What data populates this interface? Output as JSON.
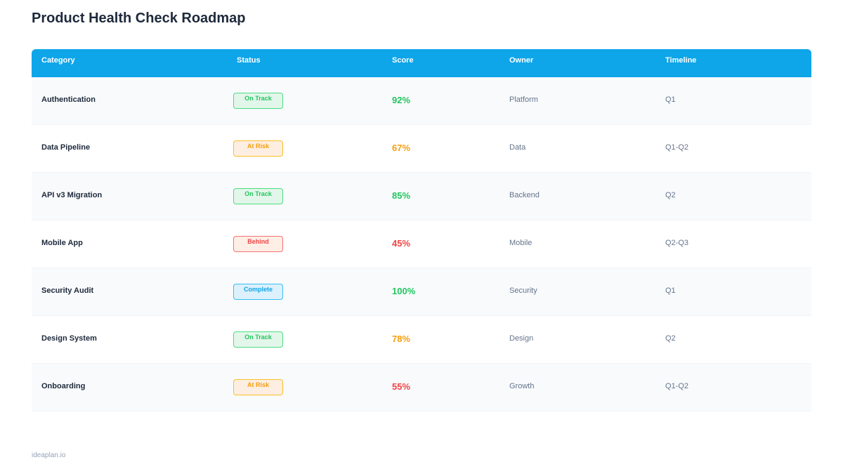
{
  "page": {
    "title": "Product Health Check Roadmap",
    "footer": "ideaplan.io"
  },
  "colors": {
    "header_bg": "#0ea5e9",
    "on_track": "#22c55e",
    "at_risk": "#f59e0b",
    "behind": "#ef4444",
    "complete": "#0ea5e9"
  },
  "table": {
    "headers": {
      "category": "Category",
      "status": "Status",
      "score": "Score",
      "owner": "Owner",
      "timeline": "Timeline"
    },
    "rows": [
      {
        "category": "Authentication",
        "status": "On Track",
        "status_type": "on-track",
        "score": "92%",
        "score_color": "#22c55e",
        "owner": "Platform",
        "timeline": "Q1"
      },
      {
        "category": "Data Pipeline",
        "status": "At Risk",
        "status_type": "at-risk",
        "score": "67%",
        "score_color": "#f59e0b",
        "owner": "Data",
        "timeline": "Q1-Q2"
      },
      {
        "category": "API v3 Migration",
        "status": "On Track",
        "status_type": "on-track",
        "score": "85%",
        "score_color": "#22c55e",
        "owner": "Backend",
        "timeline": "Q2"
      },
      {
        "category": "Mobile App",
        "status": "Behind",
        "status_type": "behind",
        "score": "45%",
        "score_color": "#ef4444",
        "owner": "Mobile",
        "timeline": "Q2-Q3"
      },
      {
        "category": "Security Audit",
        "status": "Complete",
        "status_type": "complete",
        "score": "100%",
        "score_color": "#22c55e",
        "owner": "Security",
        "timeline": "Q1"
      },
      {
        "category": "Design System",
        "status": "On Track",
        "status_type": "on-track",
        "score": "78%",
        "score_color": "#f59e0b",
        "owner": "Design",
        "timeline": "Q2"
      },
      {
        "category": "Onboarding",
        "status": "At Risk",
        "status_type": "at-risk",
        "score": "55%",
        "score_color": "#ef4444",
        "owner": "Growth",
        "timeline": "Q1-Q2"
      }
    ]
  },
  "badge_styles": {
    "on-track": {
      "color": "#22c55e",
      "bg": "#e3f6ea",
      "border": "#4ade80"
    },
    "at-risk": {
      "color": "#f59e0b",
      "bg": "#fdeee2",
      "border": "#fbbf24"
    },
    "behind": {
      "color": "#ef4444",
      "bg": "#fdeee6",
      "border": "#f87171"
    },
    "complete": {
      "color": "#0ea5e9",
      "bg": "#dcf1fb",
      "border": "#38bdf8"
    }
  }
}
